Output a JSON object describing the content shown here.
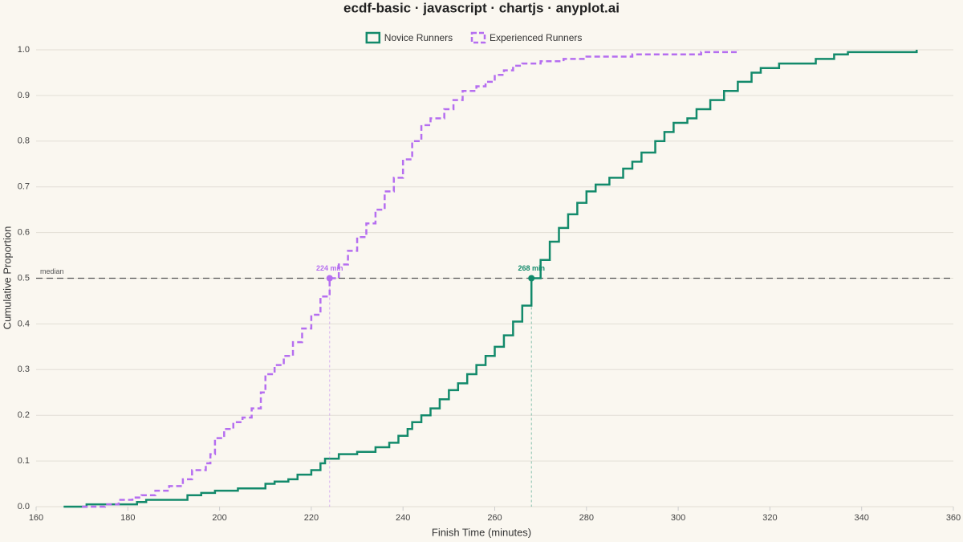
{
  "chart_data": {
    "type": "ecdf",
    "title": "ecdf-basic · javascript · chartjs · anyplot.ai",
    "x_label": "Finish Time (minutes)",
    "y_label": "Cumulative Proportion",
    "xlim": [
      160,
      360
    ],
    "xticks": [
      160,
      180,
      200,
      220,
      240,
      260,
      280,
      300,
      320,
      340,
      360
    ],
    "ylim": [
      0,
      1
    ],
    "yticks": [
      {
        "value": 0,
        "label": "0.0"
      },
      0.1,
      0.2,
      0.3,
      0.4,
      0.5,
      0.6,
      0.7,
      0.8,
      0.9,
      {
        "value": 1,
        "label": "1.0"
      }
    ],
    "grid": true,
    "legend": "top",
    "series": [
      {
        "name": "Novice Runners",
        "color": "#138a6b",
        "dash": false,
        "x": [
          166,
          171,
          182,
          184,
          193,
          196,
          199,
          204,
          210,
          212,
          215,
          217,
          220,
          222,
          223,
          226,
          230,
          234,
          237,
          239,
          241,
          242,
          244,
          246,
          248,
          250,
          252,
          254,
          256,
          258,
          260,
          262,
          264,
          266,
          268,
          270,
          272,
          274,
          276,
          278,
          280,
          282,
          285,
          288,
          290,
          292,
          295,
          297,
          299,
          302,
          304,
          307,
          310,
          313,
          316,
          318,
          322,
          330,
          334,
          337,
          352
        ],
        "values": [
          0,
          0.005,
          0.01,
          0.015,
          0.025,
          0.03,
          0.035,
          0.04,
          0.05,
          0.055,
          0.06,
          0.07,
          0.08,
          0.095,
          0.105,
          0.115,
          0.12,
          0.13,
          0.14,
          0.155,
          0.17,
          0.185,
          0.2,
          0.215,
          0.235,
          0.255,
          0.27,
          0.29,
          0.31,
          0.33,
          0.35,
          0.375,
          0.405,
          0.44,
          0.5,
          0.54,
          0.58,
          0.61,
          0.64,
          0.665,
          0.69,
          0.705,
          0.72,
          0.74,
          0.755,
          0.775,
          0.8,
          0.82,
          0.84,
          0.85,
          0.87,
          0.89,
          0.91,
          0.93,
          0.95,
          0.96,
          0.97,
          0.98,
          0.99,
          0.995,
          1
        ]
      },
      {
        "name": "Experienced Runners",
        "color": "#b56ef0",
        "dash": true,
        "x": [
          170,
          175,
          178,
          181,
          183,
          186,
          189,
          192,
          194,
          197,
          198,
          199,
          201,
          203,
          205,
          207,
          209,
          210,
          212,
          214,
          216,
          218,
          220,
          222,
          224,
          226,
          228,
          230,
          232,
          234,
          236,
          238,
          240,
          242,
          244,
          246,
          249,
          251,
          253,
          256,
          258,
          260,
          262,
          264,
          266,
          270,
          275,
          280,
          290,
          305,
          313
        ],
        "values": [
          0,
          0.005,
          0.015,
          0.02,
          0.025,
          0.035,
          0.045,
          0.06,
          0.08,
          0.095,
          0.115,
          0.15,
          0.17,
          0.185,
          0.195,
          0.215,
          0.25,
          0.29,
          0.31,
          0.33,
          0.36,
          0.39,
          0.42,
          0.46,
          0.5,
          0.53,
          0.56,
          0.59,
          0.62,
          0.65,
          0.69,
          0.72,
          0.76,
          0.8,
          0.835,
          0.85,
          0.87,
          0.89,
          0.91,
          0.92,
          0.93,
          0.945,
          0.955,
          0.965,
          0.97,
          0.975,
          0.98,
          0.985,
          0.99,
          0.995,
          1
        ]
      }
    ],
    "median": {
      "label": "median",
      "value": 0.5,
      "markers": [
        {
          "x": 224,
          "label": "224 min",
          "series": 1
        },
        {
          "x": 268,
          "label": "268 min",
          "series": 0
        }
      ]
    }
  }
}
